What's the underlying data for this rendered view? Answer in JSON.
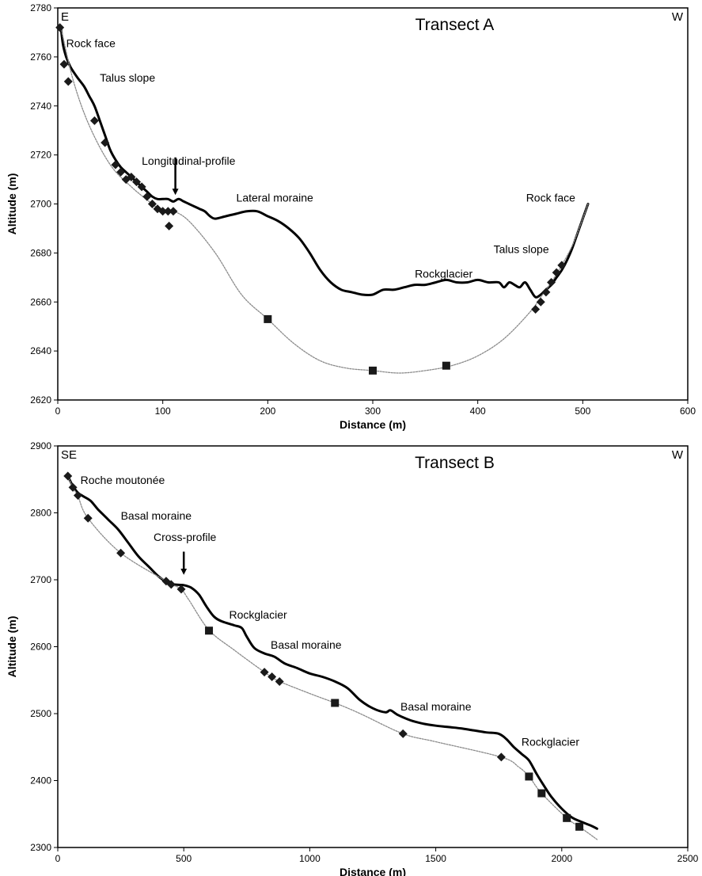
{
  "chart_data": [
    {
      "type": "line",
      "title": "Transect A",
      "xlabel": "Distance (m)",
      "ylabel": "Altitude (m)",
      "xlim": [
        0,
        600
      ],
      "ylim": [
        2620,
        2780
      ],
      "xticks": [
        0,
        100,
        200,
        300,
        400,
        500,
        600
      ],
      "yticks": [
        2620,
        2640,
        2660,
        2680,
        2700,
        2720,
        2740,
        2760,
        2780
      ],
      "grid": false,
      "legend": "none",
      "direction_left": "E",
      "direction_right": "W",
      "series": [
        {
          "style": "surface",
          "x": [
            3,
            5,
            8,
            12,
            18,
            25,
            30,
            35,
            40,
            45,
            50,
            55,
            60,
            65,
            70,
            75,
            80,
            85,
            90,
            95,
            100,
            105,
            110,
            115,
            120,
            125,
            130,
            135,
            140,
            145,
            150,
            160,
            170,
            180,
            190,
            200,
            210,
            220,
            230,
            240,
            250,
            260,
            270,
            280,
            290,
            300,
            310,
            320,
            330,
            340,
            350,
            360,
            370,
            380,
            390,
            400,
            410,
            420,
            425,
            430,
            435,
            440,
            445,
            450,
            455,
            460,
            465,
            470,
            475,
            480,
            485,
            490,
            495,
            500,
            505
          ],
          "y": [
            2772,
            2765,
            2760,
            2756,
            2752,
            2748,
            2744,
            2740,
            2734,
            2728,
            2722,
            2718,
            2715,
            2713,
            2711,
            2709,
            2707,
            2705,
            2703,
            2702,
            2702,
            2702,
            2701,
            2702,
            2701,
            2700,
            2699,
            2698,
            2697,
            2695,
            2694,
            2695,
            2696,
            2697,
            2697,
            2695,
            2693,
            2690,
            2686,
            2680,
            2673,
            2668,
            2665,
            2664,
            2663,
            2663,
            2665,
            2665,
            2666,
            2667,
            2667,
            2668,
            2669,
            2668,
            2668,
            2669,
            2668,
            2668,
            2666,
            2668,
            2667,
            2666,
            2668,
            2665,
            2662,
            2663,
            2665,
            2667,
            2670,
            2673,
            2677,
            2682,
            2688,
            2694,
            2700
          ]
        },
        {
          "style": "bed",
          "x": [
            3,
            15,
            30,
            50,
            70,
            90,
            100,
            110,
            125,
            150,
            175,
            200,
            225,
            250,
            275,
            300,
            325,
            350,
            375,
            400,
            425,
            450,
            460,
            470,
            480,
            490,
            500,
            505
          ],
          "y": [
            2772,
            2750,
            2732,
            2716,
            2707,
            2700,
            2697,
            2697,
            2693,
            2680,
            2663,
            2653,
            2643,
            2636,
            2633,
            2632,
            2631,
            2632,
            2634,
            2638,
            2645,
            2656,
            2662,
            2668,
            2675,
            2683,
            2694,
            2700
          ]
        }
      ],
      "points": {
        "diamonds": [
          [
            2,
            2772
          ],
          [
            6,
            2757
          ],
          [
            10,
            2750
          ],
          [
            35,
            2734
          ],
          [
            45,
            2725
          ],
          [
            55,
            2716
          ],
          [
            60,
            2713
          ],
          [
            65,
            2710
          ],
          [
            70,
            2711
          ],
          [
            75,
            2709
          ],
          [
            80,
            2707
          ],
          [
            85,
            2703
          ],
          [
            90,
            2700
          ],
          [
            95,
            2698
          ],
          [
            100,
            2697
          ],
          [
            105,
            2697
          ],
          [
            110,
            2697
          ],
          [
            106,
            2691
          ],
          [
            455,
            2657
          ],
          [
            460,
            2660
          ],
          [
            465,
            2664
          ],
          [
            470,
            2668
          ],
          [
            475,
            2672
          ],
          [
            480,
            2675
          ]
        ],
        "squares": [
          [
            200,
            2653
          ],
          [
            300,
            2632
          ],
          [
            370,
            2634
          ]
        ]
      },
      "annotations": [
        {
          "text": "Rock face",
          "x": 8,
          "y": 2764
        },
        {
          "text": "Talus slope",
          "x": 40,
          "y": 2750
        },
        {
          "text": "Longitudinal-profile",
          "x": 80,
          "y": 2716
        },
        {
          "text": "Lateral moraine",
          "x": 170,
          "y": 2701
        },
        {
          "text": "Rockglacier",
          "x": 340,
          "y": 2670
        },
        {
          "text": "Rock face",
          "x": 446,
          "y": 2701
        },
        {
          "text": "Talus slope",
          "x": 415,
          "y": 2680
        }
      ],
      "arrow": {
        "x": 112,
        "y_from": 2719,
        "y_to": 2703
      }
    },
    {
      "type": "line",
      "title": "Transect B",
      "xlabel": "Distance (m)",
      "ylabel": "Altitude (m)",
      "xlim": [
        0,
        2500
      ],
      "ylim": [
        2300,
        2900
      ],
      "xticks": [
        0,
        500,
        1000,
        1500,
        2000,
        2500
      ],
      "yticks": [
        2300,
        2400,
        2500,
        2600,
        2700,
        2800,
        2900
      ],
      "grid": false,
      "legend": "none",
      "direction_left": "SE",
      "direction_right": "W",
      "series": [
        {
          "style": "surface",
          "x": [
            40,
            60,
            80,
            100,
            130,
            160,
            200,
            240,
            280,
            320,
            360,
            400,
            430,
            460,
            500,
            530,
            560,
            590,
            620,
            650,
            700,
            730,
            750,
            780,
            820,
            860,
            900,
            950,
            1000,
            1050,
            1100,
            1150,
            1200,
            1250,
            1300,
            1320,
            1350,
            1400,
            1450,
            1500,
            1550,
            1600,
            1650,
            1700,
            1750,
            1780,
            1810,
            1840,
            1870,
            1900,
            1930,
            1960,
            2000,
            2040,
            2080,
            2120,
            2140
          ],
          "y": [
            2855,
            2840,
            2830,
            2825,
            2818,
            2805,
            2790,
            2775,
            2755,
            2735,
            2720,
            2705,
            2697,
            2693,
            2692,
            2688,
            2678,
            2660,
            2645,
            2638,
            2632,
            2628,
            2615,
            2598,
            2590,
            2585,
            2575,
            2568,
            2560,
            2555,
            2548,
            2538,
            2520,
            2508,
            2502,
            2505,
            2498,
            2490,
            2485,
            2482,
            2480,
            2478,
            2475,
            2472,
            2470,
            2462,
            2450,
            2440,
            2430,
            2410,
            2392,
            2375,
            2358,
            2345,
            2338,
            2332,
            2328
          ]
        },
        {
          "style": "bed",
          "x": [
            40,
            60,
            80,
            120,
            250,
            430,
            450,
            490,
            520,
            600,
            700,
            820,
            850,
            880,
            1000,
            1100,
            1200,
            1370,
            1500,
            1760,
            1830,
            1870,
            1920,
            2020,
            2070,
            2140
          ],
          "y": [
            2855,
            2838,
            2825,
            2792,
            2740,
            2698,
            2693,
            2686,
            2670,
            2625,
            2595,
            2562,
            2555,
            2548,
            2530,
            2516,
            2500,
            2470,
            2458,
            2435,
            2420,
            2406,
            2381,
            2344,
            2331,
            2312
          ]
        }
      ],
      "points": {
        "diamonds": [
          [
            40,
            2855
          ],
          [
            60,
            2838
          ],
          [
            80,
            2826
          ],
          [
            120,
            2792
          ],
          [
            250,
            2740
          ],
          [
            430,
            2698
          ],
          [
            450,
            2693
          ],
          [
            490,
            2686
          ],
          [
            820,
            2562
          ],
          [
            850,
            2555
          ],
          [
            880,
            2548
          ],
          [
            1370,
            2470
          ],
          [
            1760,
            2435
          ]
        ],
        "squares": [
          [
            600,
            2624
          ],
          [
            1100,
            2516
          ],
          [
            1870,
            2406
          ],
          [
            1920,
            2381
          ],
          [
            2020,
            2344
          ],
          [
            2070,
            2331
          ]
        ]
      },
      "annotations": [
        {
          "text": "Roche moutonée",
          "x": 90,
          "y": 2843
        },
        {
          "text": "Basal moraine",
          "x": 250,
          "y": 2790
        },
        {
          "text": "Cross-profile",
          "x": 380,
          "y": 2758
        },
        {
          "text": "Rockglacier",
          "x": 680,
          "y": 2642
        },
        {
          "text": "Basal moraine",
          "x": 845,
          "y": 2597
        },
        {
          "text": "Basal moraine",
          "x": 1360,
          "y": 2505
        },
        {
          "text": "Rockglacier",
          "x": 1840,
          "y": 2452
        }
      ],
      "arrow": {
        "x": 500,
        "y_from": 2742,
        "y_to": 2705
      }
    }
  ]
}
